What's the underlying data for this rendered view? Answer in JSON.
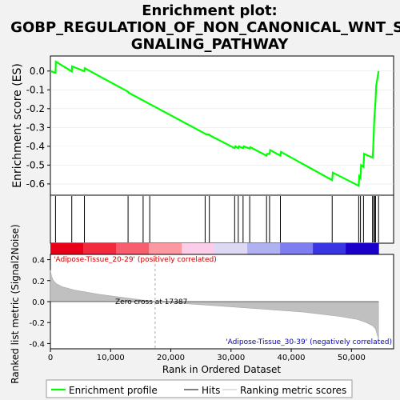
{
  "chart_data": {
    "type": "line",
    "title_lines": [
      "Enrichment plot:",
      "GOBP_REGULATION_OF_NON_CANONICAL_WNT_SI",
      "GNALING_PATHWAY"
    ],
    "ylabel_top": "Enrichment score (ES)",
    "ylabel_bottom": "Ranked list metric (Signal2Noise)",
    "xlabel": "Rank in Ordered Dataset",
    "x_ticks": [
      0,
      10000,
      20000,
      30000,
      40000,
      50000
    ],
    "x_tick_labels": [
      "0",
      "10,000",
      "20,000",
      "30,000",
      "40,000",
      "50,000"
    ],
    "xlim": [
      0,
      57000
    ],
    "es_ylim": [
      -0.66,
      0.08
    ],
    "es_ticks": [
      0.0,
      -0.1,
      -0.2,
      -0.3,
      -0.4,
      -0.5,
      -0.6
    ],
    "es_tick_labels": [
      "0.0",
      "-0.1",
      "-0.2",
      "-0.3",
      "-0.4",
      "-0.5",
      "-0.6"
    ],
    "metric_ylim": [
      -0.45,
      0.45
    ],
    "metric_ticks": [
      0.4,
      0.2,
      0.0,
      -0.2,
      -0.4
    ],
    "metric_tick_labels": [
      "0.4",
      "0.2",
      "0.0",
      "-0.2",
      "-0.4"
    ],
    "series": [
      {
        "name": "Enrichment profile",
        "color": "#00ff00",
        "x": [
          0,
          850,
          900,
          3550,
          3600,
          5650,
          5700,
          12900,
          13000,
          25700,
          25800,
          26400,
          26500,
          30600,
          30700,
          31200,
          31300,
          32000,
          32100,
          33100,
          33200,
          35900,
          36000,
          36400,
          36500,
          38200,
          38300,
          46800,
          46900,
          51200,
          51300,
          51500,
          51600,
          52000,
          52100,
          53500,
          53600,
          53700,
          53800,
          54000,
          54100,
          54500
        ],
        "y": [
          0.0,
          -0.01,
          0.05,
          -0.002,
          0.025,
          -0.001,
          0.015,
          -0.11,
          -0.115,
          -0.333,
          -0.336,
          -0.338,
          -0.342,
          -0.41,
          -0.4,
          -0.41,
          -0.4,
          -0.41,
          -0.4,
          -0.412,
          -0.405,
          -0.45,
          -0.44,
          -0.44,
          -0.42,
          -0.45,
          -0.43,
          -0.58,
          -0.54,
          -0.61,
          -0.56,
          -0.57,
          -0.5,
          -0.51,
          -0.44,
          -0.46,
          -0.42,
          -0.33,
          -0.25,
          -0.16,
          -0.08,
          0.0
        ]
      }
    ],
    "hits": [
      850,
      3550,
      5650,
      12900,
      15400,
      16500,
      25700,
      26400,
      30600,
      31200,
      32000,
      33100,
      35900,
      36400,
      38200,
      46800,
      51200,
      51500,
      52000,
      53500,
      53700,
      53900,
      54000,
      54500
    ],
    "metric_curve": {
      "name": "Ranking metric scores",
      "x": [
        0,
        200,
        500,
        1000,
        2000,
        4000,
        8000,
        12000,
        17387,
        25000,
        35000,
        42000,
        48000,
        51000,
        52500,
        53500,
        54000,
        54300,
        54500
      ],
      "y": [
        0.3,
        0.24,
        0.2,
        0.17,
        0.14,
        0.11,
        0.07,
        0.04,
        0.0,
        -0.03,
        -0.07,
        -0.1,
        -0.14,
        -0.17,
        -0.2,
        -0.23,
        -0.26,
        -0.32,
        -0.36
      ]
    },
    "zero_cross": 17387,
    "zero_cross_label": "Zero cross at 17387",
    "pos_label": "'Adipose-Tissue_20-29' (positively correlated)",
    "neg_label": "'Adipose-Tissue_30-39' (negatively correlated)",
    "legend": [
      "Enrichment profile",
      "Hits",
      "Ranking metric scores"
    ],
    "legend_position": "bottom",
    "colorbar_colors": [
      "#e8001a",
      "#f22a3e",
      "#f75e6e",
      "#fb98a2",
      "#fccde8",
      "#ddd9f5",
      "#b0b1f0",
      "#7e7ef0",
      "#3a35e3",
      "#1a00c8"
    ]
  }
}
